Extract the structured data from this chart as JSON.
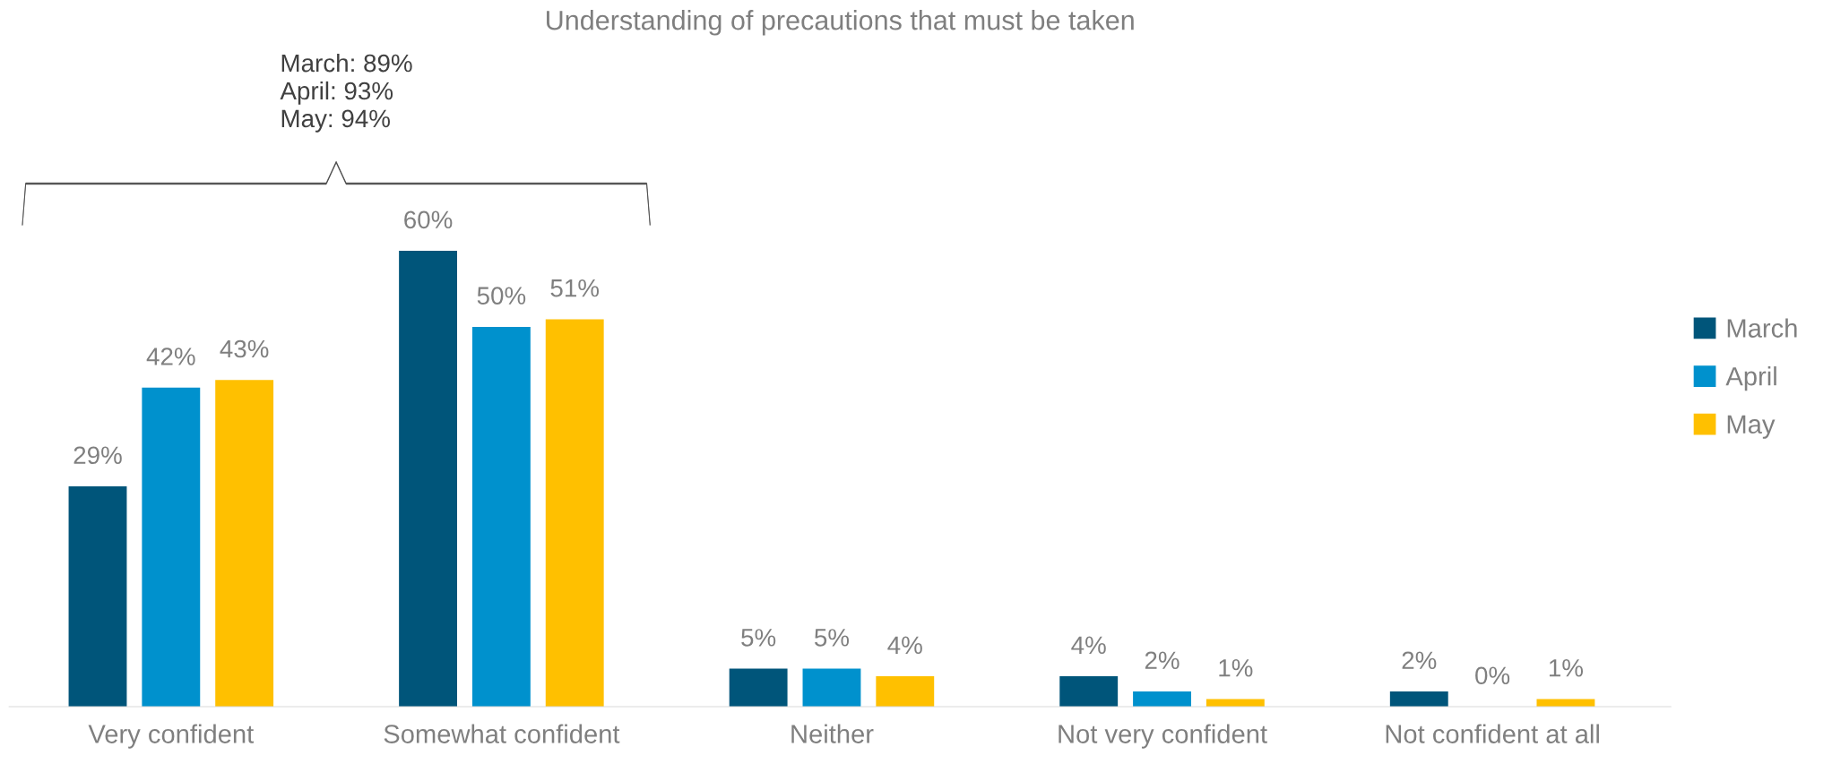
{
  "chart_data": {
    "type": "bar",
    "title": "Understanding of precautions that must be taken",
    "categories": [
      "Very confident",
      "Somewhat confident",
      "Neither",
      "Not very confident",
      "Not confident at all"
    ],
    "series": [
      {
        "name": "March",
        "color": "#00557a",
        "values": [
          29,
          60,
          5,
          4,
          2
        ],
        "value_labels": [
          "29%",
          "60%",
          "5%",
          "4%",
          "2%"
        ]
      },
      {
        "name": "April",
        "color": "#0091cd",
        "values": [
          42,
          50,
          5,
          2,
          0
        ],
        "value_labels": [
          "42%",
          "50%",
          "5%",
          "2%",
          "0%"
        ]
      },
      {
        "name": "May",
        "color": "#ffc000",
        "values": [
          43,
          51,
          4,
          1,
          1
        ],
        "value_labels": [
          "43%",
          "51%",
          "4%",
          "1%",
          "1%"
        ]
      }
    ],
    "legend": "right",
    "grid": false,
    "annotations": [
      "March: 89%\nApril: 93%\nMay: 94%"
    ]
  }
}
